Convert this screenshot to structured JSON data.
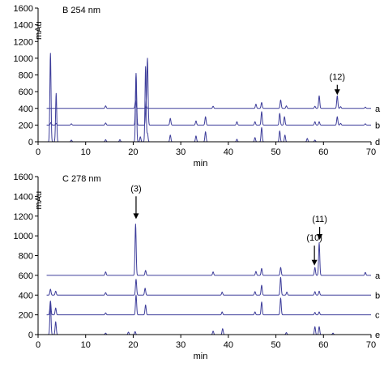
{
  "chart_data": [
    {
      "type": "line",
      "title": "B  254 nm",
      "xlabel": "min",
      "ylabel": "mAu",
      "xlim": [
        0,
        70
      ],
      "ylim": [
        0,
        1600
      ],
      "xticks": [
        0,
        10,
        20,
        30,
        40,
        50,
        60,
        70
      ],
      "yticks": [
        0,
        200,
        400,
        600,
        800,
        1000,
        1200,
        1400,
        1600
      ],
      "line_color": "#3d3d9a",
      "series": [
        {
          "name": "a",
          "baseline": 400,
          "peaks": [
            [
              14.2,
              30
            ],
            [
              20.5,
              90
            ],
            [
              22.7,
              30
            ],
            [
              36.8,
              25
            ],
            [
              45.8,
              50
            ],
            [
              47.0,
              70
            ],
            [
              51.0,
              100
            ],
            [
              52.2,
              30
            ],
            [
              58.2,
              25
            ],
            [
              59.1,
              150
            ],
            [
              62.9,
              150
            ],
            [
              63.6,
              20
            ],
            [
              68.8,
              15
            ]
          ]
        },
        {
          "name": "b",
          "baseline": 200,
          "peaks": [
            [
              2.7,
              30
            ],
            [
              3.8,
              20
            ],
            [
              7.0,
              15
            ],
            [
              14.2,
              25
            ],
            [
              20.6,
              620
            ],
            [
              22.7,
              240
            ],
            [
              23.0,
              790
            ],
            [
              27.8,
              80
            ],
            [
              33.2,
              50
            ],
            [
              35.2,
              100
            ],
            [
              41.8,
              40
            ],
            [
              45.6,
              40
            ],
            [
              47.0,
              160
            ],
            [
              50.8,
              140
            ],
            [
              51.8,
              100
            ],
            [
              58.2,
              40
            ],
            [
              59.1,
              40
            ],
            [
              62.9,
              100
            ],
            [
              63.6,
              20
            ],
            [
              68.8,
              15
            ]
          ]
        },
        {
          "name": "d",
          "baseline": 0,
          "peaks": [
            [
              2.6,
              1060
            ],
            [
              3.8,
              580
            ],
            [
              7.0,
              20
            ],
            [
              14.2,
              25
            ],
            [
              17.2,
              25
            ],
            [
              20.6,
              770
            ],
            [
              21.5,
              60
            ],
            [
              22.6,
              900
            ],
            [
              23.0,
              100
            ],
            [
              27.8,
              80
            ],
            [
              33.2,
              70
            ],
            [
              35.2,
              120
            ],
            [
              41.8,
              30
            ],
            [
              45.6,
              50
            ],
            [
              47.0,
              170
            ],
            [
              50.8,
              130
            ],
            [
              51.9,
              80
            ],
            [
              56.6,
              40
            ],
            [
              58.2,
              20
            ]
          ]
        }
      ],
      "annotations": [
        {
          "text": "(12)",
          "x": 62.9,
          "y": 560,
          "text_y": 740
        }
      ]
    },
    {
      "type": "line",
      "title": "C  278 nm",
      "xlabel": "min",
      "ylabel": "mAu",
      "xlim": [
        0,
        70
      ],
      "ylim": [
        0,
        1600
      ],
      "xticks": [
        0,
        10,
        20,
        30,
        40,
        50,
        60,
        70
      ],
      "yticks": [
        0,
        200,
        400,
        600,
        800,
        1000,
        1200,
        1400,
        1600
      ],
      "line_color": "#3d3d9a",
      "series": [
        {
          "name": "a",
          "baseline": 600,
          "peaks": [
            [
              14.2,
              35
            ],
            [
              20.5,
              520
            ],
            [
              22.6,
              50
            ],
            [
              36.8,
              35
            ],
            [
              45.8,
              40
            ],
            [
              47.0,
              70
            ],
            [
              51.0,
              80
            ],
            [
              58.2,
              80
            ],
            [
              59.1,
              330
            ],
            [
              68.8,
              30
            ]
          ]
        },
        {
          "name": "b",
          "baseline": 400,
          "peaks": [
            [
              2.6,
              60
            ],
            [
              3.7,
              40
            ],
            [
              14.2,
              25
            ],
            [
              20.6,
              160
            ],
            [
              22.5,
              70
            ],
            [
              38.7,
              30
            ],
            [
              45.6,
              35
            ],
            [
              47.0,
              100
            ],
            [
              51.0,
              180
            ],
            [
              52.3,
              30
            ],
            [
              58.2,
              35
            ],
            [
              59.1,
              40
            ]
          ]
        },
        {
          "name": "c",
          "baseline": 200,
          "peaks": [
            [
              2.6,
              140
            ],
            [
              3.7,
              70
            ],
            [
              14.2,
              20
            ],
            [
              20.6,
              200
            ],
            [
              22.6,
              100
            ],
            [
              38.7,
              30
            ],
            [
              45.6,
              30
            ],
            [
              47.0,
              130
            ],
            [
              51.0,
              170
            ],
            [
              58.2,
              25
            ],
            [
              59.1,
              30
            ]
          ]
        },
        {
          "name": "e",
          "baseline": 0,
          "peaks": [
            [
              2.6,
              310
            ],
            [
              3.7,
              130
            ],
            [
              14.2,
              15
            ],
            [
              19.0,
              25
            ],
            [
              20.4,
              30
            ],
            [
              36.8,
              35
            ],
            [
              38.8,
              60
            ],
            [
              52.2,
              20
            ],
            [
              58.2,
              80
            ],
            [
              59.1,
              80
            ],
            [
              62.0,
              15
            ]
          ]
        }
      ],
      "annotations": [
        {
          "text": "(3)",
          "x": 20.6,
          "y": 1170,
          "text_y": 1450
        },
        {
          "text": "(10)",
          "x": 58.1,
          "y": 700,
          "text_y": 950
        },
        {
          "text": "(11)",
          "x": 59.2,
          "y": 960,
          "text_y": 1140
        }
      ]
    }
  ]
}
